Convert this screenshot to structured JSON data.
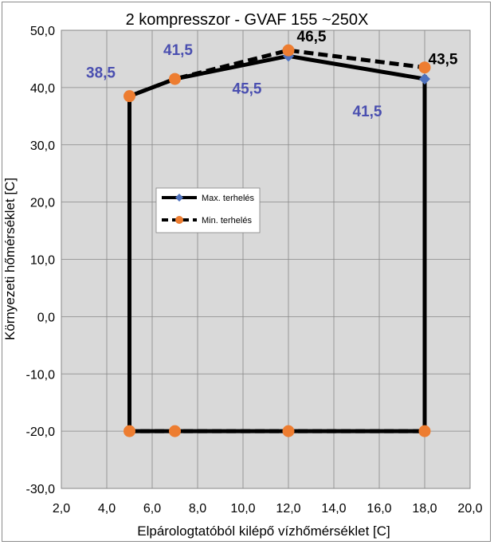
{
  "chart_data": {
    "type": "line",
    "title": "2 kompresszor - GVAF 155 ~250X",
    "xlabel": "Elpárologtatóból kilépő vízhőmérséklet [C]",
    "ylabel": "Környezeti hőmérséklet [C]",
    "xlim": [
      2,
      20
    ],
    "ylim": [
      -30,
      50
    ],
    "xticks": [
      "2,0",
      "4,0",
      "6,0",
      "8,0",
      "10,0",
      "12,0",
      "14,0",
      "16,0",
      "18,0",
      "20,0"
    ],
    "yticks": [
      "-30,0",
      "-20,0",
      "-10,0",
      "0,0",
      "10,0",
      "20,0",
      "30,0",
      "40,0",
      "50,0"
    ],
    "grid": true,
    "legend_position": "center-left",
    "series": [
      {
        "name": "Max. terhelés",
        "line_color": "#000000",
        "line_style": "solid",
        "marker": "diamond",
        "marker_color": "#4f72be",
        "points": [
          [
            5,
            -20
          ],
          [
            5,
            38.5
          ],
          [
            7,
            41.5
          ],
          [
            12,
            45.5
          ],
          [
            18,
            41.5
          ],
          [
            18,
            -20
          ],
          [
            12,
            -20
          ],
          [
            7,
            -20
          ],
          [
            5,
            -20
          ]
        ]
      },
      {
        "name": "Min. terhelés",
        "line_color": "#000000",
        "line_style": "dashed",
        "marker": "circle",
        "marker_color": "#ed7d31",
        "points": [
          [
            5,
            -20
          ],
          [
            5,
            38.5
          ],
          [
            7,
            41.5
          ],
          [
            12,
            46.5
          ],
          [
            18,
            43.5
          ],
          [
            18,
            -20
          ],
          [
            12,
            -20
          ],
          [
            7,
            -20
          ],
          [
            5,
            -20
          ]
        ]
      }
    ],
    "annotations": [
      {
        "text": "38,5",
        "x": 5,
        "y": 38.5,
        "color": "#4a4fb0"
      },
      {
        "text": "41,5",
        "x": 7,
        "y": 41.5,
        "color": "#4a4fb0"
      },
      {
        "text": "45,5",
        "x": 12,
        "y": 45.5,
        "color": "#4a4fb0"
      },
      {
        "text": "41,5",
        "x": 18,
        "y": 41.5,
        "color": "#4a4fb0"
      },
      {
        "text": "46,5",
        "x": 12,
        "y": 46.5,
        "color": "#000000"
      },
      {
        "text": "43,5",
        "x": 18,
        "y": 43.5,
        "color": "#000000"
      }
    ]
  }
}
